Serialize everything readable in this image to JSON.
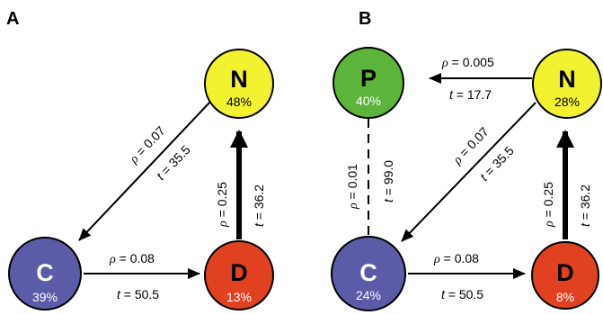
{
  "panels": {
    "a": {
      "label": "A",
      "nodes": {
        "N": {
          "letter": "N",
          "pct": "48%"
        },
        "C": {
          "letter": "C",
          "pct": "39%"
        },
        "D": {
          "letter": "D",
          "pct": "13%"
        }
      },
      "edges": {
        "n_to_c": {
          "rho": "ρ",
          "rho_val": " = 0.07",
          "t": "t",
          "t_val": " = 35.5"
        },
        "c_to_d": {
          "rho": "ρ",
          "rho_val": " = 0.08",
          "t": "t",
          "t_val": " = 50.5"
        },
        "d_to_n": {
          "rho": "ρ",
          "rho_val": " = 0.25",
          "t": "t",
          "t_val": " = 36.2"
        }
      }
    },
    "b": {
      "label": "B",
      "nodes": {
        "P": {
          "letter": "P",
          "pct": "40%"
        },
        "N": {
          "letter": "N",
          "pct": "28%"
        },
        "C": {
          "letter": "C",
          "pct": "24%"
        },
        "D": {
          "letter": "D",
          "pct": "8%"
        }
      },
      "edges": {
        "n_to_p": {
          "rho": "ρ",
          "rho_val": " = 0.005",
          "t": "t",
          "t_val": " = 17.7"
        },
        "p_c": {
          "rho": "ρ",
          "rho_val": " = 0.01",
          "t": "t",
          "t_val": " = 99.0"
        },
        "n_to_c": {
          "rho": "ρ",
          "rho_val": " = 0.07",
          "t": "t",
          "t_val": " = 35.5"
        },
        "c_to_d": {
          "rho": "ρ",
          "rho_val": " = 0.08",
          "t": "t",
          "t_val": " = 50.5"
        },
        "d_to_n": {
          "rho": "ρ",
          "rho_val": " = 0.25",
          "t": "t",
          "t_val": " = 36.2"
        }
      }
    }
  },
  "colors": {
    "N": "#f2f230",
    "C": "#5b5ba8",
    "D": "#e04121",
    "P": "#5cb43a"
  }
}
